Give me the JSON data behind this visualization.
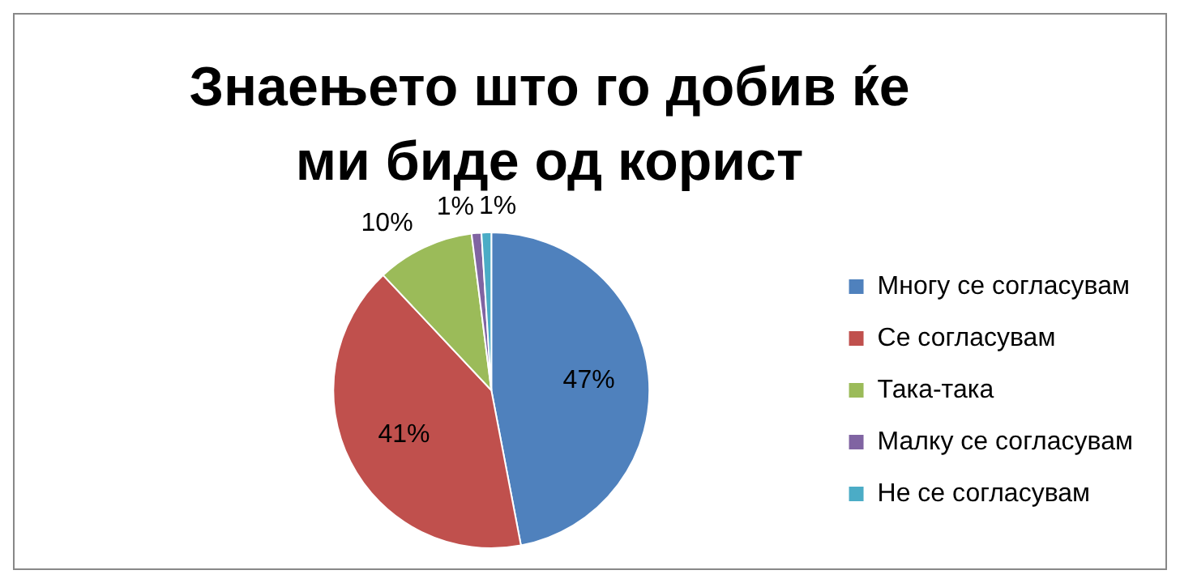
{
  "chart_data": {
    "type": "pie",
    "title": "Знаењето што го добив ќе ми биде од корист",
    "categories": [
      "Многу се согласувам",
      "Се согласувам",
      "Така-така",
      "Малку се согласувам",
      "Не се согласувам"
    ],
    "values": [
      47,
      41,
      10,
      1,
      1
    ],
    "colors": [
      "#4f81bd",
      "#c0504d",
      "#9bbb59",
      "#8064a2",
      "#4bacc6"
    ],
    "value_labels": [
      "47%",
      "41%",
      "10%",
      "1%",
      "1%"
    ],
    "legend": "right"
  }
}
